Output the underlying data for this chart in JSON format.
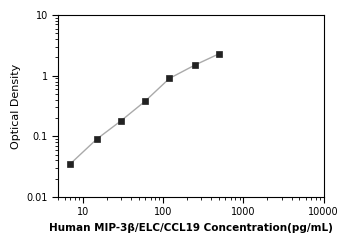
{
  "x": [
    7,
    15,
    30,
    60,
    120,
    250,
    500
  ],
  "y": [
    0.035,
    0.09,
    0.18,
    0.38,
    0.9,
    1.5,
    2.3
  ],
  "xlabel": "Human MIP-3β/ELC/CCL19 Concentration(pg/mL)",
  "ylabel": "Optical Density",
  "xlim": [
    5,
    10000
  ],
  "ylim": [
    0.01,
    10
  ],
  "line_color": "#aaaaaa",
  "marker_color": "#222222",
  "marker": "s",
  "marker_size": 4,
  "line_width": 1.0,
  "xlabel_fontsize": 7.5,
  "ylabel_fontsize": 8,
  "tick_fontsize": 7,
  "background_color": "#ffffff",
  "ytick_labels": [
    "0.01",
    "0.1",
    "1",
    "10"
  ],
  "ytick_values": [
    0.01,
    0.1,
    1,
    10
  ],
  "xtick_labels": [
    "10",
    "100",
    "1000",
    "10000"
  ],
  "xtick_values": [
    10,
    100,
    1000,
    10000
  ]
}
